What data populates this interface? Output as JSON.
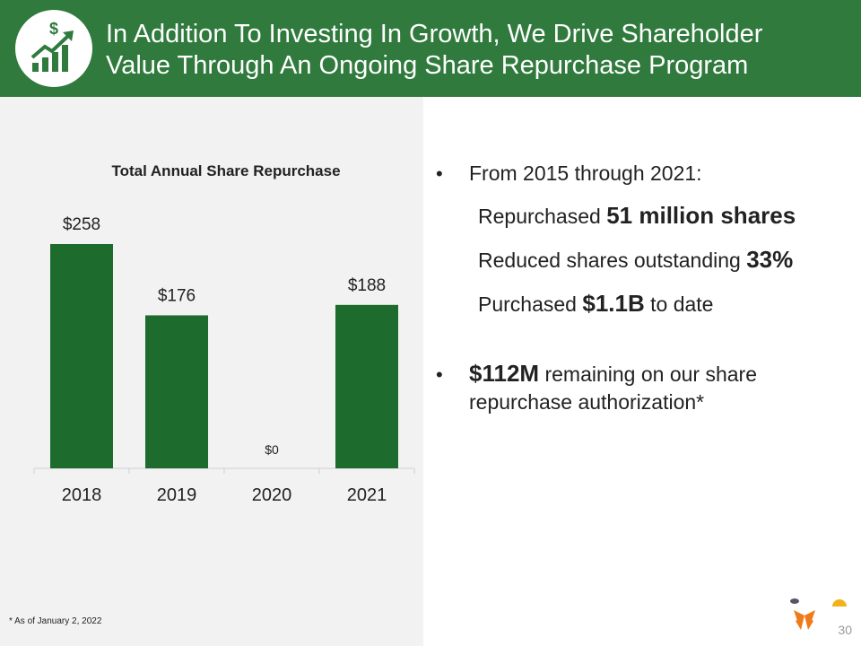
{
  "header": {
    "title_lines": [
      "In Addition To Investing In Growth, We Drive Shareholder",
      "Value Through An Ongoing Share Repurchase Program"
    ]
  },
  "chart_data": {
    "type": "bar",
    "title": "Total Annual Share Repurchase",
    "categories": [
      "2018",
      "2019",
      "2020",
      "2021"
    ],
    "values": [
      258,
      176,
      0,
      188
    ],
    "value_labels": [
      "$258",
      "$176",
      "$0",
      "$188"
    ],
    "color": "#1e6b2e"
  },
  "bullets": [
    {
      "lines": [
        [
          {
            "text": "From 2015 through 2021:",
            "bold": false
          }
        ]
      ],
      "details": [
        [
          {
            "text": "Repurchased ",
            "bold": false
          },
          {
            "text": "51 million shares",
            "bold": true
          }
        ],
        [
          {
            "text": "Reduced shares outstanding ",
            "bold": false
          },
          {
            "text": "33%",
            "bold": true
          }
        ],
        [
          {
            "text": "Purchased ",
            "bold": false
          },
          {
            "text": "$1.1B",
            "bold": true
          },
          {
            "text": " to date",
            "bold": false
          }
        ]
      ]
    },
    {
      "lines": [
        [
          {
            "text": "$112M",
            "bold": true
          },
          {
            "text": " remaining on our share",
            "bold": false
          }
        ],
        [
          {
            "text": "repurchase authorization*",
            "bold": false
          }
        ]
      ]
    }
  ],
  "footnote": "* As of January 2, 2022",
  "page_number": "30"
}
